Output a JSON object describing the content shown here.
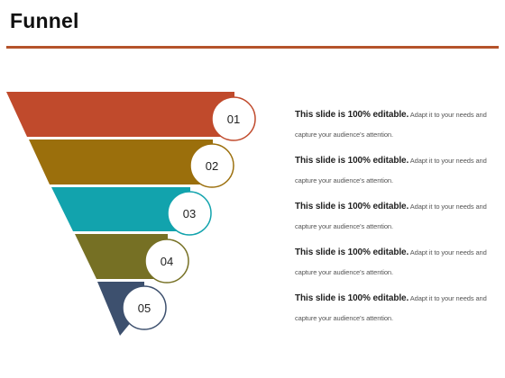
{
  "title": "Funnel",
  "colors": {
    "rule": "#b5532b",
    "steps": [
      "#c04a2c",
      "#9b6f0c",
      "#12a3ad",
      "#767024",
      "#3d506e"
    ]
  },
  "steps": [
    {
      "number": "01",
      "bold": "This slide is 100% editable.",
      "text1": " Adapt it to your needs and",
      "text2": "capture your audience's attention."
    },
    {
      "number": "02",
      "bold": "This slide is 100% editable.",
      "text1": " Adapt it to your needs and",
      "text2": "capture your audience's attention."
    },
    {
      "number": "03",
      "bold": "This slide is 100% editable.",
      "text1": " Adapt it to your needs and",
      "text2": "capture your audience's attention."
    },
    {
      "number": "04",
      "bold": "This slide is 100% editable.",
      "text1": " Adapt it to your needs and",
      "text2": "capture your audience's attention."
    },
    {
      "number": "05",
      "bold": "This slide is 100% editable.",
      "text1": " Adapt it to your needs and",
      "text2": "capture your audience's attention."
    }
  ]
}
